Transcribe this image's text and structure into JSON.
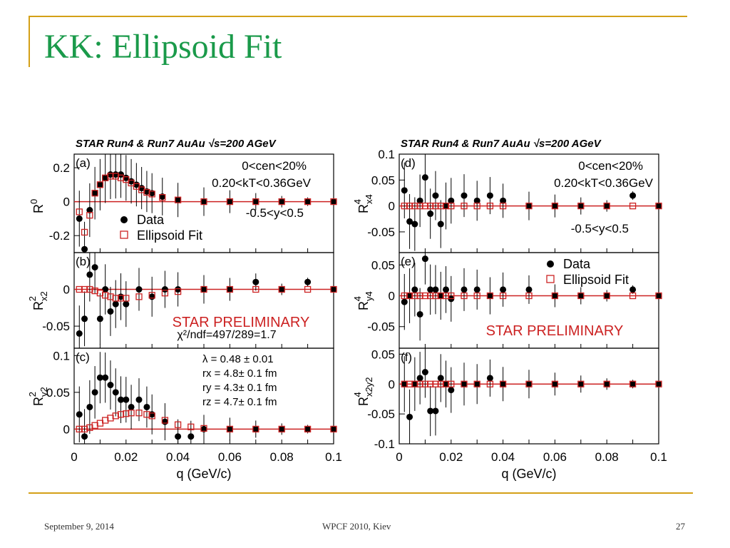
{
  "slide": {
    "title": "KK: Ellipsoid Fit",
    "footer_left": "September 9, 2014",
    "footer_center": "WPCF 2010, Kiev",
    "footer_right": "27"
  },
  "colors": {
    "title": "#1a9a4a",
    "rule": "#d4a017",
    "fit": "#cc2222",
    "data": "#000000"
  },
  "chart_data": [
    {
      "id": "a",
      "type": "scatter",
      "panel_label": "(a)",
      "header": "STAR Run4 & Run7 AuAu √s=200 AGeV",
      "ylabel": "R^0",
      "ylim": [
        -0.3,
        0.28
      ],
      "yticks": [
        {
          "v": 0.2,
          "t": "0.2"
        },
        {
          "v": 0,
          "t": "0"
        },
        {
          "v": -0.2,
          "t": "-0.2"
        }
      ],
      "xlim": [
        0,
        0.1
      ],
      "cuts": [
        "0<cen<20%",
        "0.20<kT<0.36GeV",
        "-0.5<y<0.5"
      ],
      "legend": [
        "Data",
        "Ellipsoid Fit"
      ],
      "series": [
        {
          "name": "Data",
          "x": [
            0.002,
            0.004,
            0.006,
            0.008,
            0.01,
            0.012,
            0.014,
            0.016,
            0.018,
            0.02,
            0.022,
            0.024,
            0.026,
            0.028,
            0.03,
            0.034,
            0.04,
            0.05,
            0.06,
            0.07,
            0.08,
            0.09,
            0.1
          ],
          "y": [
            -0.1,
            -0.28,
            -0.05,
            0.05,
            0.1,
            0.14,
            0.16,
            0.16,
            0.16,
            0.14,
            0.12,
            0.1,
            0.08,
            0.06,
            0.05,
            0.03,
            0.01,
            0.0,
            0.0,
            0.0,
            0.0,
            0.0,
            0.0
          ]
        },
        {
          "name": "Ellipsoid Fit",
          "x": [
            0.002,
            0.004,
            0.006,
            0.008,
            0.01,
            0.012,
            0.014,
            0.016,
            0.018,
            0.02,
            0.022,
            0.024,
            0.026,
            0.028,
            0.03,
            0.034,
            0.04,
            0.05,
            0.06,
            0.07,
            0.08,
            0.09,
            0.1
          ],
          "y": [
            -0.06,
            -0.18,
            -0.08,
            0.05,
            0.1,
            0.14,
            0.15,
            0.15,
            0.14,
            0.13,
            0.11,
            0.09,
            0.07,
            0.055,
            0.045,
            0.025,
            0.01,
            0.0,
            0.0,
            0.0,
            0.0,
            0.0,
            0.0
          ]
        }
      ]
    },
    {
      "id": "b",
      "type": "scatter",
      "panel_label": "(b)",
      "ylabel": "R^2_x2",
      "ylim": [
        -0.08,
        0.05
      ],
      "yticks": [
        {
          "v": 0,
          "t": "0"
        },
        {
          "v": -0.05,
          "t": "-0.05"
        }
      ],
      "xlim": [
        0,
        0.1
      ],
      "annotations": [
        "STAR PRELIMINARY",
        "χ²/ndf=497/289=1.7"
      ],
      "series": [
        {
          "name": "Data",
          "x": [
            0.002,
            0.004,
            0.006,
            0.008,
            0.01,
            0.012,
            0.014,
            0.016,
            0.018,
            0.02,
            0.025,
            0.03,
            0.035,
            0.04,
            0.05,
            0.06,
            0.07,
            0.08,
            0.09,
            0.1
          ],
          "y": [
            -0.06,
            -0.04,
            0.02,
            0.03,
            -0.04,
            0.0,
            -0.03,
            -0.02,
            -0.01,
            -0.02,
            0.0,
            -0.01,
            0.0,
            0.0,
            0.0,
            0.0,
            0.01,
            0.0,
            0.01,
            0.0
          ]
        },
        {
          "name": "Ellipsoid Fit",
          "x": [
            0.002,
            0.004,
            0.006,
            0.008,
            0.01,
            0.012,
            0.014,
            0.016,
            0.018,
            0.02,
            0.025,
            0.03,
            0.035,
            0.04,
            0.05,
            0.06,
            0.07,
            0.08,
            0.09,
            0.1
          ],
          "y": [
            0.0,
            0.0,
            0.0,
            -0.002,
            -0.005,
            -0.008,
            -0.01,
            -0.012,
            -0.012,
            -0.012,
            -0.01,
            -0.008,
            -0.005,
            -0.003,
            0.0,
            0.0,
            0.0,
            0.0,
            0.0,
            0.0
          ]
        }
      ]
    },
    {
      "id": "c",
      "type": "scatter",
      "panel_label": "(c)",
      "ylabel": "R^2_y2",
      "ylim": [
        -0.02,
        0.11
      ],
      "yticks": [
        {
          "v": 0.1,
          "t": "0.1"
        },
        {
          "v": 0.05,
          "t": "0.05"
        },
        {
          "v": 0,
          "t": "0"
        }
      ],
      "xlim": [
        0,
        0.1
      ],
      "xticks": [
        {
          "v": 0,
          "t": "0"
        },
        {
          "v": 0.02,
          "t": "0.02"
        },
        {
          "v": 0.04,
          "t": "0.04"
        },
        {
          "v": 0.06,
          "t": "0.06"
        },
        {
          "v": 0.08,
          "t": "0.08"
        },
        {
          "v": 0.1,
          "t": "0.1"
        }
      ],
      "xlabel": "q (GeV/c)",
      "params": [
        "λ = 0.48 ± 0.01",
        "rx = 4.8± 0.1 fm",
        "ry = 4.3± 0.1 fm",
        "rz = 4.7± 0.1 fm"
      ],
      "series": [
        {
          "name": "Data",
          "x": [
            0.002,
            0.004,
            0.006,
            0.008,
            0.01,
            0.012,
            0.014,
            0.016,
            0.018,
            0.02,
            0.022,
            0.025,
            0.028,
            0.03,
            0.035,
            0.04,
            0.045,
            0.05,
            0.06,
            0.07,
            0.08,
            0.09,
            0.1
          ],
          "y": [
            0.02,
            -0.01,
            0.03,
            0.05,
            0.07,
            0.07,
            0.06,
            0.05,
            0.04,
            0.04,
            0.03,
            0.04,
            0.03,
            0.02,
            0.01,
            -0.01,
            -0.01,
            0.0,
            0.0,
            0.0,
            0.0,
            0.0,
            0.0
          ]
        },
        {
          "name": "Ellipsoid Fit",
          "x": [
            0.002,
            0.004,
            0.006,
            0.008,
            0.01,
            0.012,
            0.014,
            0.016,
            0.018,
            0.02,
            0.022,
            0.025,
            0.028,
            0.03,
            0.035,
            0.04,
            0.045,
            0.05,
            0.06,
            0.07,
            0.08,
            0.09,
            0.1
          ],
          "y": [
            0.0,
            0.0,
            0.002,
            0.005,
            0.008,
            0.012,
            0.015,
            0.018,
            0.02,
            0.021,
            0.022,
            0.022,
            0.02,
            0.018,
            0.012,
            0.006,
            0.003,
            0.001,
            0.0,
            0.0,
            0.0,
            0.0,
            0.0
          ]
        }
      ]
    },
    {
      "id": "d",
      "type": "scatter",
      "panel_label": "(d)",
      "header": "STAR Run4 & Run7 AuAu √s=200 AGeV",
      "ylabel": "R^4_x4",
      "ylim": [
        -0.09,
        0.1
      ],
      "yticks": [
        {
          "v": 0.1,
          "t": "0.1"
        },
        {
          "v": 0.05,
          "t": "0.05"
        },
        {
          "v": 0,
          "t": "0"
        },
        {
          "v": -0.05,
          "t": "-0.05"
        }
      ],
      "xlim": [
        0,
        0.1
      ],
      "cuts": [
        "0<cen<20%",
        "0.20<kT<0.36GeV",
        "-0.5<y<0.5"
      ],
      "series": [
        {
          "name": "Data",
          "x": [
            0.002,
            0.004,
            0.006,
            0.008,
            0.01,
            0.012,
            0.014,
            0.016,
            0.018,
            0.02,
            0.025,
            0.03,
            0.035,
            0.04,
            0.05,
            0.06,
            0.07,
            0.08,
            0.09,
            0.1
          ],
          "y": [
            0.03,
            -0.03,
            -0.035,
            0.01,
            0.055,
            -0.015,
            0.02,
            -0.035,
            0.0,
            0.01,
            0.02,
            0.01,
            0.02,
            0.01,
            0.0,
            0.0,
            0.0,
            0.0,
            0.02,
            0.0
          ]
        },
        {
          "name": "Ellipsoid Fit",
          "x": [
            0.002,
            0.004,
            0.006,
            0.008,
            0.01,
            0.012,
            0.014,
            0.016,
            0.018,
            0.02,
            0.025,
            0.03,
            0.035,
            0.04,
            0.05,
            0.06,
            0.07,
            0.08,
            0.09,
            0.1
          ],
          "y": [
            0,
            0,
            0,
            0,
            0,
            0,
            0,
            0,
            0,
            0,
            0,
            0,
            0,
            0,
            0,
            0,
            0,
            0,
            0,
            0
          ]
        }
      ]
    },
    {
      "id": "e",
      "type": "scatter",
      "panel_label": "(e)",
      "ylabel": "R^4_y4",
      "ylim": [
        -0.085,
        0.07
      ],
      "yticks": [
        {
          "v": 0.05,
          "t": "0.05"
        },
        {
          "v": 0,
          "t": "0"
        },
        {
          "v": -0.05,
          "t": "-0.05"
        }
      ],
      "xlim": [
        0,
        0.1
      ],
      "legend": [
        "Data",
        "Ellipsoid Fit"
      ],
      "annotations": [
        "STAR PRELIMINARY"
      ],
      "series": [
        {
          "name": "Data",
          "x": [
            0.002,
            0.004,
            0.006,
            0.008,
            0.01,
            0.012,
            0.014,
            0.016,
            0.018,
            0.02,
            0.025,
            0.03,
            0.035,
            0.04,
            0.05,
            0.06,
            0.07,
            0.08,
            0.09,
            0.1
          ],
          "y": [
            -0.01,
            0.0,
            0.01,
            -0.03,
            0.06,
            0.01,
            0.01,
            0.0,
            0.01,
            -0.005,
            0.01,
            0.01,
            0.0,
            0.01,
            0.01,
            0.0,
            0.0,
            0.0,
            0.01,
            0.0
          ]
        },
        {
          "name": "Ellipsoid Fit",
          "x": [
            0.002,
            0.004,
            0.006,
            0.008,
            0.01,
            0.012,
            0.014,
            0.016,
            0.018,
            0.02,
            0.025,
            0.03,
            0.035,
            0.04,
            0.05,
            0.06,
            0.07,
            0.08,
            0.09,
            0.1
          ],
          "y": [
            0,
            0,
            0,
            0,
            0,
            0,
            0,
            0,
            0,
            0,
            0,
            0,
            0,
            0,
            0,
            0,
            0,
            0,
            0,
            0
          ]
        }
      ]
    },
    {
      "id": "f",
      "type": "scatter",
      "panel_label": "(f)",
      "ylabel": "R^4_x2y2",
      "ylim": [
        -0.1,
        0.06
      ],
      "yticks": [
        {
          "v": 0.05,
          "t": "0.05"
        },
        {
          "v": 0,
          "t": "0"
        },
        {
          "v": -0.05,
          "t": "-0.05"
        },
        {
          "v": -0.1,
          "t": "-0.1"
        }
      ],
      "xlim": [
        0,
        0.1
      ],
      "xticks": [
        {
          "v": 0,
          "t": "0"
        },
        {
          "v": 0.02,
          "t": "0.02"
        },
        {
          "v": 0.04,
          "t": "0.04"
        },
        {
          "v": 0.06,
          "t": "0.06"
        },
        {
          "v": 0.08,
          "t": "0.08"
        },
        {
          "v": 0.1,
          "t": "0.1"
        }
      ],
      "xlabel": "q (GeV/c)",
      "series": [
        {
          "name": "Data",
          "x": [
            0.002,
            0.004,
            0.006,
            0.008,
            0.01,
            0.012,
            0.014,
            0.016,
            0.018,
            0.02,
            0.025,
            0.03,
            0.035,
            0.04,
            0.05,
            0.06,
            0.07,
            0.08,
            0.09,
            0.1
          ],
          "y": [
            0.0,
            -0.055,
            0.0,
            0.01,
            0.02,
            -0.045,
            -0.045,
            0.01,
            0.0,
            -0.01,
            0.0,
            0.0,
            0.01,
            0.0,
            0.0,
            0.0,
            0.0,
            0.0,
            0.0,
            0.0
          ]
        },
        {
          "name": "Ellipsoid Fit",
          "x": [
            0.002,
            0.004,
            0.006,
            0.008,
            0.01,
            0.012,
            0.014,
            0.016,
            0.018,
            0.02,
            0.025,
            0.03,
            0.035,
            0.04,
            0.05,
            0.06,
            0.07,
            0.08,
            0.09,
            0.1
          ],
          "y": [
            0,
            0,
            0,
            0,
            0,
            0,
            0,
            0,
            0,
            0,
            0,
            0,
            0,
            0,
            0,
            0,
            0,
            0,
            0,
            0
          ]
        }
      ]
    }
  ]
}
